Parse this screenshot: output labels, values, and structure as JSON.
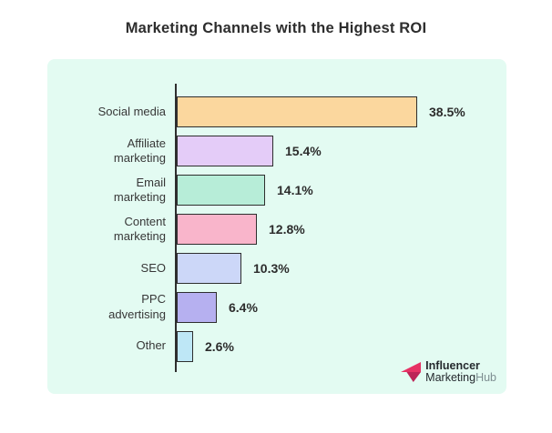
{
  "title": "Marketing Channels with the Highest ROI",
  "panel": {
    "background": "#e3fbf2"
  },
  "chart_data": {
    "type": "bar",
    "orientation": "horizontal",
    "title": "Marketing Channels with the Highest ROI",
    "xlabel": "",
    "ylabel": "",
    "xlim": [
      0,
      40
    ],
    "grid": false,
    "unit": "%",
    "categories": [
      "Social media",
      "Affiliate marketing",
      "Email marketing",
      "Content marketing",
      "SEO",
      "PPC advertising",
      "Other"
    ],
    "label_lines": [
      [
        "Social media"
      ],
      [
        "Affiliate",
        "marketing"
      ],
      [
        "Email",
        "marketing"
      ],
      [
        "Content",
        "marketing"
      ],
      [
        "SEO"
      ],
      [
        "PPC",
        "advertising"
      ],
      [
        "Other"
      ]
    ],
    "values": [
      38.5,
      15.4,
      14.1,
      12.8,
      10.3,
      6.4,
      2.6
    ],
    "value_labels": [
      "38.5%",
      "15.4%",
      "14.1%",
      "12.8%",
      "10.3%",
      "6.4%",
      "2.6%"
    ],
    "bar_colors": [
      "#fbd79e",
      "#e4ccf8",
      "#b7edd8",
      "#f9b5cb",
      "#ccd7f8",
      "#b6b0f0",
      "#bee7f6"
    ],
    "bar_border_color": "#2e2e2e",
    "axis_color": "#2e2e2e"
  },
  "logo": {
    "line1": "Influencer",
    "line2_dark": "Marketing",
    "line2_light": "Hub",
    "icon_color": "#e73265",
    "icon_shade_color": "#bc2457"
  }
}
